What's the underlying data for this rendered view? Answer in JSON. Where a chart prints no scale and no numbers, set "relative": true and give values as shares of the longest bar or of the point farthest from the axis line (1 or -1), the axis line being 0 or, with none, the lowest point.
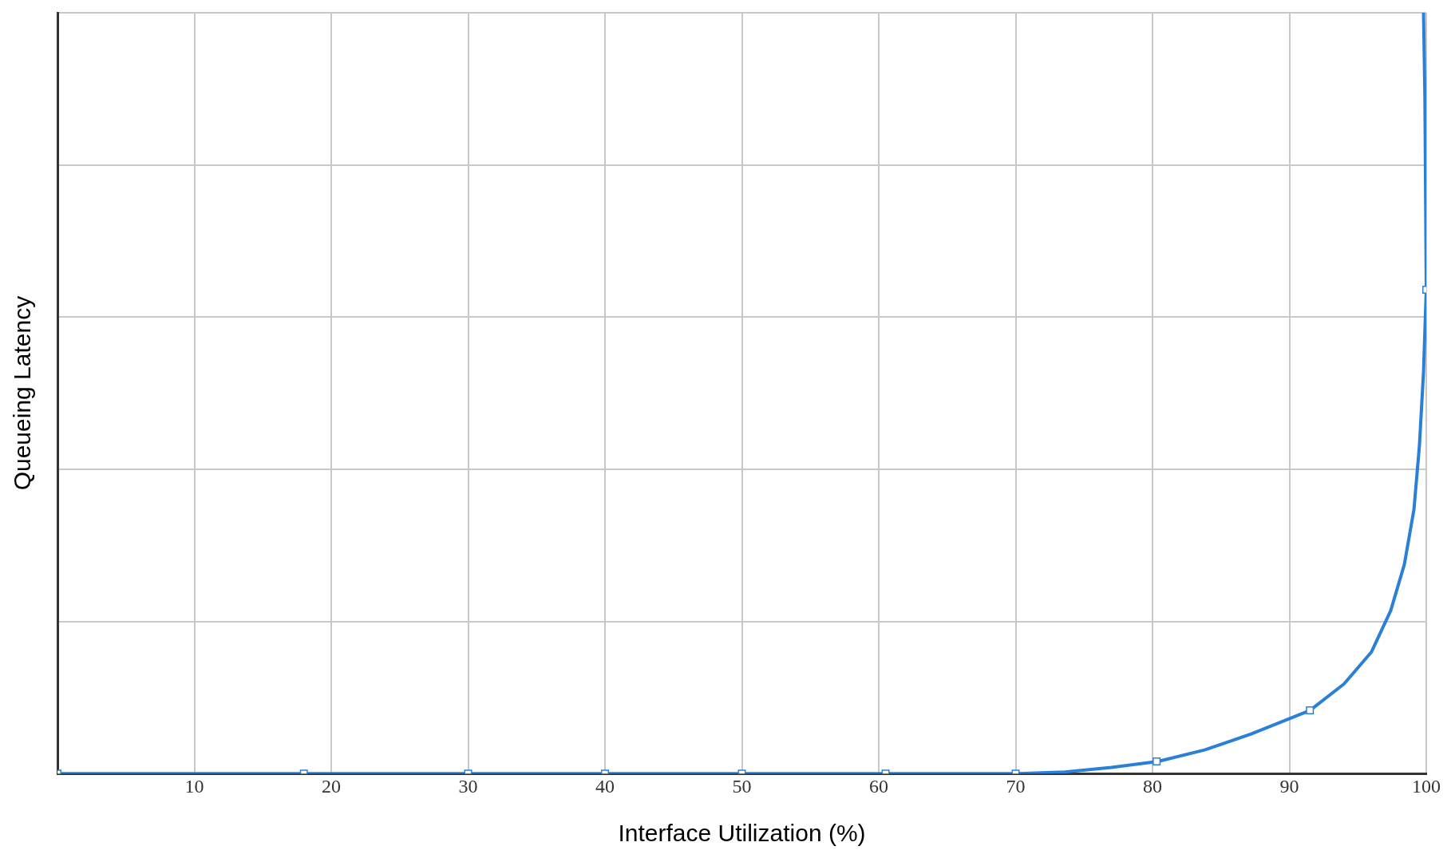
{
  "chart_data": {
    "type": "line",
    "xlabel": "Interface Utilization (%)",
    "ylabel": "Queueing Latency",
    "relative": true,
    "xlim": [
      0,
      100
    ],
    "xticks": [
      10,
      20,
      30,
      40,
      50,
      60,
      70,
      80,
      90,
      100
    ],
    "grid": true,
    "legend": false,
    "series": [
      {
        "color": "#2a7fd6",
        "marker": "none",
        "x": [
          0,
          70.2,
          73.6,
          77.0,
          80.4,
          83.8,
          87.2,
          91.5,
          94.0,
          96.0,
          97.4,
          98.4,
          99.1,
          99.5,
          99.8,
          100.0,
          99.9,
          99.8
        ],
        "values": [
          0,
          0,
          0.002,
          0.008,
          0.016,
          0.031,
          0.052,
          0.083,
          0.118,
          0.16,
          0.214,
          0.275,
          0.347,
          0.431,
          0.528,
          0.636,
          0.889,
          1.0
        ]
      },
      {
        "type": "scatter",
        "color": "#2a7fd6",
        "marker": "square",
        "x": [
          0,
          18,
          30,
          40,
          50,
          60.5,
          70,
          80.3,
          91.5,
          100
        ],
        "values": [
          0,
          0,
          0,
          0,
          0,
          0,
          0,
          0.016,
          0.083,
          0.636
        ]
      }
    ]
  }
}
